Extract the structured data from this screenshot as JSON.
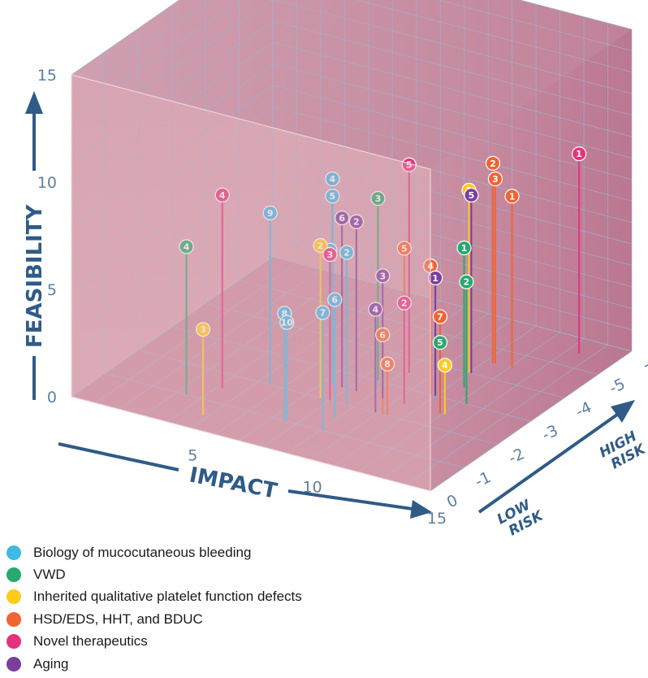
{
  "chart_data": {
    "type": "scatter",
    "dimensions": "3d",
    "axes": {
      "x": {
        "label": "IMPACT",
        "range": [
          0,
          15
        ],
        "ticks": [
          "5",
          "10",
          "15"
        ]
      },
      "y": {
        "label": "FEASIBILITY",
        "range": [
          0,
          15
        ],
        "ticks": [
          "0",
          "5",
          "10",
          "15"
        ]
      },
      "z": {
        "labels": [
          "LOW RISK",
          "HIGH RISK"
        ],
        "range": [
          0,
          -6
        ],
        "ticks": [
          "0",
          "-1",
          "-2",
          "-3",
          "-4",
          "-5",
          "-6"
        ]
      }
    },
    "legend_position": "bottom-left",
    "series": [
      {
        "name": "Biology of mucocutaneous bleeding",
        "color": "#3fb9e5",
        "points": [
          {
            "label": "1",
            "x": 11.0,
            "y": 8.5,
            "z": -4.0
          },
          {
            "label": "2",
            "x": 8.7,
            "y": 7.1,
            "z": -2.0
          },
          {
            "label": "3",
            "x": 8.0,
            "y": 7.0,
            "z": -2.0
          },
          {
            "label": "4",
            "x": 7.4,
            "y": 9.6,
            "z": -2.5
          },
          {
            "label": "5",
            "x": 7.4,
            "y": 8.8,
            "z": -2.5
          },
          {
            "label": "6",
            "x": 8.9,
            "y": 5.5,
            "z": -1.5
          },
          {
            "label": "7",
            "x": 9.1,
            "y": 5.5,
            "z": -1.0
          },
          {
            "label": "8",
            "x": 7.5,
            "y": 5.0,
            "z": -1.0
          },
          {
            "label": "9",
            "x": 5.5,
            "y": 8.0,
            "z": -2.0
          },
          {
            "label": "10",
            "x": 7.6,
            "y": 4.6,
            "z": -1.0
          }
        ]
      },
      {
        "name": "VWD",
        "color": "#27a96f",
        "points": [
          {
            "label": "1",
            "x": 11.5,
            "y": 6.5,
            "z": -3.5
          },
          {
            "label": "2",
            "x": 12.3,
            "y": 5.7,
            "z": -3.0
          },
          {
            "label": "3",
            "x": 8.6,
            "y": 8.5,
            "z": -3.0
          },
          {
            "label": "4",
            "x": 3.4,
            "y": 6.9,
            "z": -1.0
          },
          {
            "label": "5",
            "x": 11.9,
            "y": 3.3,
            "z": -2.5
          }
        ]
      },
      {
        "name": "Inherited qualitative platelet function defects",
        "color": "#fecb1b",
        "points": [
          {
            "label": "1",
            "x": 11.0,
            "y": 8.5,
            "z": -4.0
          },
          {
            "label": "2",
            "x": 7.6,
            "y": 7.1,
            "z": -2.0
          },
          {
            "label": "3",
            "x": 4.8,
            "y": 4.0,
            "z": -0.5
          },
          {
            "label": "4",
            "x": 12.1,
            "y": 2.3,
            "z": -2.5
          }
        ]
      },
      {
        "name": "HSD/EDS, HHT, and BDUC",
        "color": "#f06432",
        "points": [
          {
            "label": "1",
            "x": 12.1,
            "y": 8.0,
            "z": -4.5
          },
          {
            "label": "2",
            "x": 11.3,
            "y": 9.3,
            "z": -4.5
          },
          {
            "label": "3",
            "x": 11.4,
            "y": 8.6,
            "z": -4.5
          },
          {
            "label": "4",
            "x": 10.8,
            "y": 6.0,
            "z": -3.0
          },
          {
            "label": "5",
            "x": 9.7,
            "y": 6.5,
            "z": -3.0
          },
          {
            "label": "6",
            "x": 10.2,
            "y": 3.7,
            "z": -2.0
          },
          {
            "label": "7",
            "x": 11.9,
            "y": 4.5,
            "z": -2.5
          },
          {
            "label": "8",
            "x": 10.4,
            "y": 2.4,
            "z": -2.0
          }
        ]
      },
      {
        "name": "Novel therapeutics",
        "color": "#e5327e",
        "points": [
          {
            "label": "1",
            "x": 13.5,
            "y": 9.3,
            "z": -5.5
          },
          {
            "label": "2",
            "x": 10.4,
            "y": 4.7,
            "z": -2.5
          },
          {
            "label": "3",
            "x": 8.0,
            "y": 6.8,
            "z": -2.0
          },
          {
            "label": "4",
            "x": 4.2,
            "y": 9.0,
            "z": -1.5
          },
          {
            "label": "5",
            "x": 9.2,
            "y": 9.7,
            "z": -3.5
          }
        ]
      },
      {
        "name": "Aging",
        "color": "#7a3e9d",
        "points": [
          {
            "label": "1",
            "x": 11.0,
            "y": 5.5,
            "z": -3.0
          },
          {
            "label": "2",
            "x": 8.4,
            "y": 7.9,
            "z": -2.5
          },
          {
            "label": "3",
            "x": 9.5,
            "y": 5.7,
            "z": -2.5
          },
          {
            "label": "4",
            "x": 9.9,
            "y": 4.8,
            "z": -2.0
          },
          {
            "label": "5",
            "x": 11.1,
            "y": 8.3,
            "z": -4.0
          },
          {
            "label": "6",
            "x": 7.8,
            "y": 7.9,
            "z": -2.5
          }
        ]
      }
    ]
  }
}
